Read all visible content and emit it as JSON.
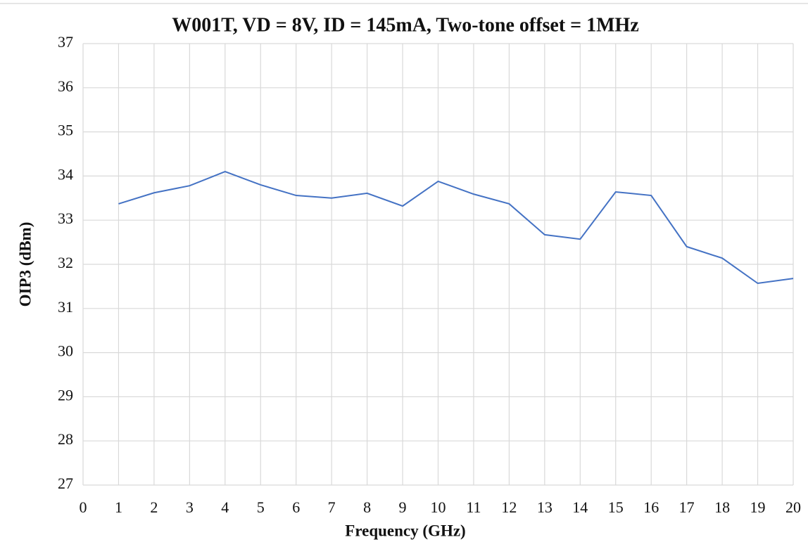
{
  "chart_data": {
    "type": "line",
    "title": "W001T, VD = 8V, ID = 145mA, Two-tone offset = 1MHz",
    "x_label": "Frequency (GHz)",
    "y_label": "OIP3 (dBm)",
    "x": [
      1,
      2,
      3,
      4,
      5,
      6,
      7,
      8,
      9,
      10,
      11,
      12,
      13,
      14,
      15,
      16,
      17,
      18,
      19,
      20
    ],
    "series": [
      {
        "name": "OIP3",
        "color": "#4472c4",
        "values": [
          33.37,
          33.62,
          33.78,
          34.1,
          33.8,
          33.56,
          33.5,
          33.61,
          33.32,
          33.88,
          33.59,
          33.37,
          32.67,
          32.57,
          33.64,
          33.56,
          32.4,
          32.14,
          31.57,
          31.68
        ]
      }
    ],
    "xlim": [
      0,
      20
    ],
    "xticks": [
      0,
      1,
      2,
      3,
      4,
      5,
      6,
      7,
      8,
      9,
      10,
      11,
      12,
      13,
      14,
      15,
      16,
      17,
      18,
      19,
      20
    ],
    "ylim": [
      27,
      37
    ],
    "yticks": [
      27,
      28,
      29,
      30,
      31,
      32,
      33,
      34,
      35,
      36,
      37
    ],
    "grid": true
  }
}
